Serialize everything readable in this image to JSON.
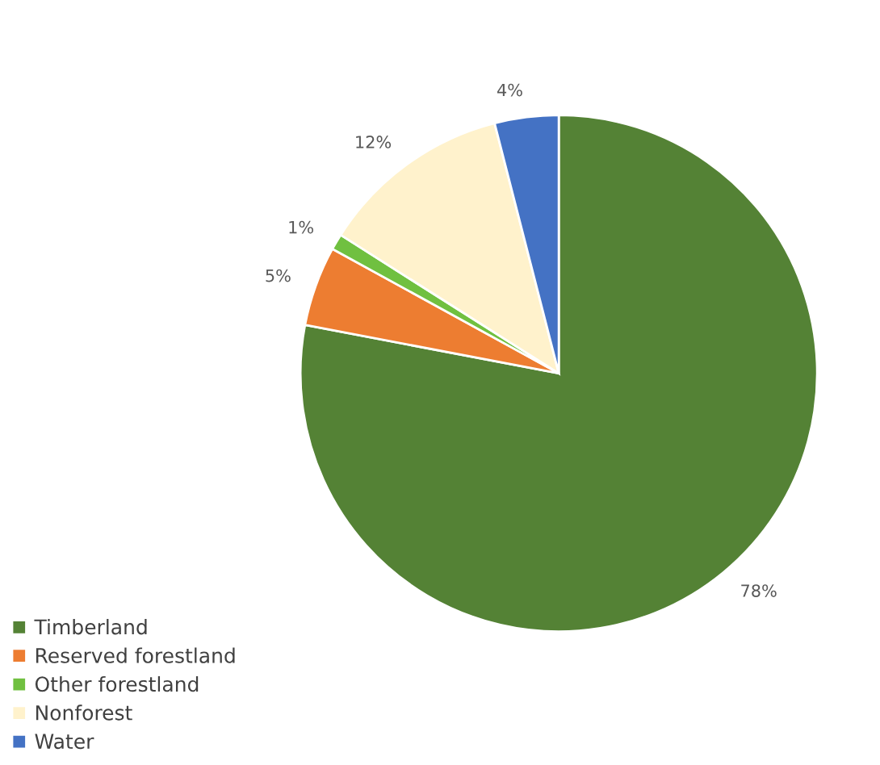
{
  "chart_data": {
    "type": "pie",
    "categories": [
      "Timberland",
      "Reserved forestland",
      "Other forestland",
      "Nonforest",
      "Water"
    ],
    "values": [
      78,
      5,
      1,
      12,
      4
    ],
    "colors": [
      "#548235",
      "#ed7d31",
      "#70c040",
      "#fff2cc",
      "#4472c4"
    ],
    "value_labels": [
      "78%",
      "5%",
      "1%",
      "12%",
      "4%"
    ],
    "legend": "bottom left"
  }
}
